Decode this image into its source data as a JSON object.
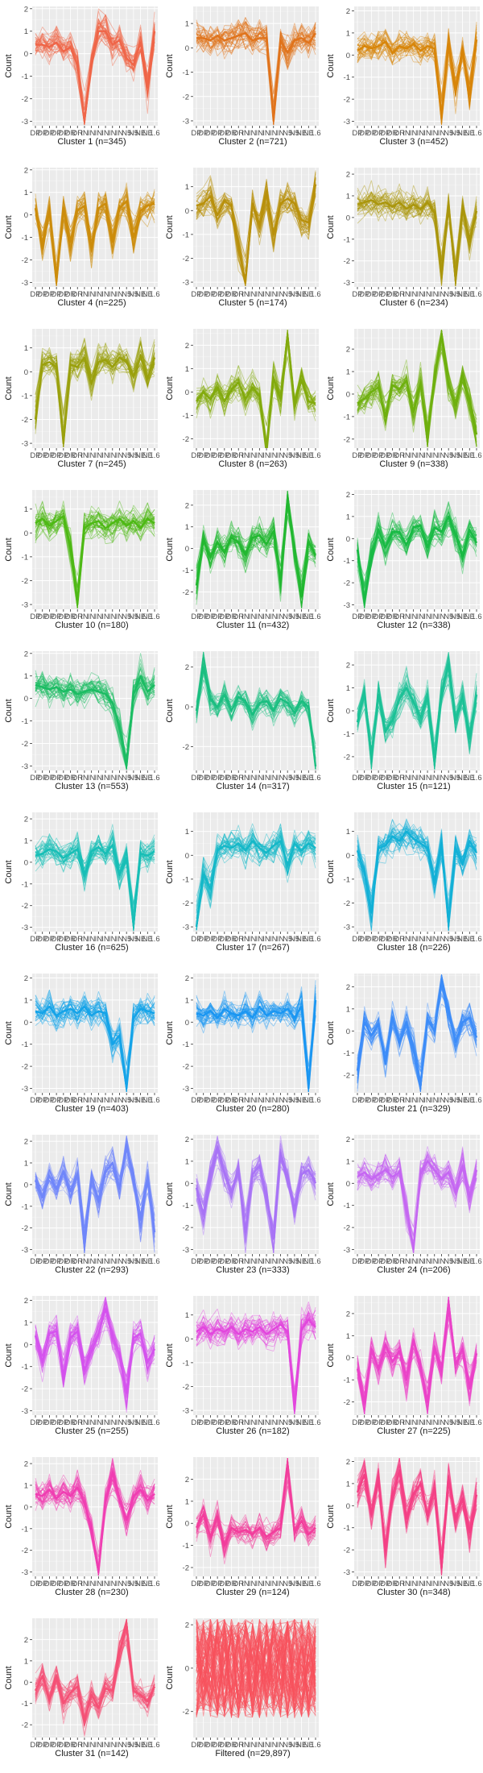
{
  "axis": {
    "ylabel": "Count",
    "xtick_labels": [
      "DP",
      "DP",
      "DP",
      "DP",
      "DP",
      "DR",
      "DR",
      "IN",
      "IN",
      "IN",
      "IN",
      "IN",
      "IN",
      "N5",
      "N5",
      "NE",
      "NE",
      "1.6"
    ]
  },
  "chart_data": [
    {
      "type": "line",
      "title": "Cluster 1 (n=345)",
      "color": "#EF6548",
      "ylim": [
        -3.2,
        2.1
      ],
      "yticks": [
        -3,
        -2,
        -1,
        0,
        1,
        2
      ],
      "profile": [
        0.4,
        0.4,
        0.3,
        0.5,
        0.1,
        0.3,
        -0.5,
        -3.0,
        -0.3,
        1.0,
        1.0,
        0.4,
        0.6,
        -0.2,
        -0.5,
        0.5,
        -1.5,
        1.0
      ]
    },
    {
      "type": "line",
      "title": "Cluster 2 (n=721)",
      "color": "#E0731B",
      "ylim": [
        -3.2,
        1.7
      ],
      "yticks": [
        -3,
        -2,
        -1,
        0,
        1
      ],
      "profile": [
        0.4,
        0.4,
        0.3,
        0.5,
        0.3,
        0.4,
        0.5,
        0.6,
        0.3,
        0.4,
        0.4,
        -3.0,
        0.3,
        -0.2,
        0.3,
        0.4,
        0.2,
        0.6
      ]
    },
    {
      "type": "line",
      "title": "Cluster 3 (n=452)",
      "color": "#D88509",
      "ylim": [
        -3.2,
        2.2
      ],
      "yticks": [
        -3,
        -2,
        -1,
        0,
        1,
        2
      ],
      "profile": [
        0.2,
        0.4,
        0.3,
        0.4,
        0.6,
        0.1,
        0.4,
        0.3,
        0.5,
        0.2,
        0.4,
        0.3,
        -2.8,
        0.5,
        -1.5,
        0.3,
        -1.8,
        0.7
      ]
    },
    {
      "type": "line",
      "title": "Cluster 4 (n=225)",
      "color": "#CC8C0B",
      "ylim": [
        -3.2,
        2.1
      ],
      "yticks": [
        -3,
        -2,
        -1,
        0,
        1,
        2
      ],
      "profile": [
        0.3,
        -1.5,
        0.2,
        -3.0,
        0.3,
        -1.2,
        0.2,
        0.4,
        -1.5,
        0.3,
        0.5,
        -1.2,
        0.3,
        0.6,
        -1.0,
        0.2,
        0.4,
        0.5
      ]
    },
    {
      "type": "line",
      "title": "Cluster 5 (n=174)",
      "color": "#B8900B",
      "ylim": [
        -3.2,
        1.8
      ],
      "yticks": [
        -3,
        -2,
        -1,
        0,
        1
      ],
      "profile": [
        0.2,
        0.3,
        0.6,
        -0.2,
        0.4,
        0.2,
        -1.5,
        -3.0,
        0.3,
        -0.6,
        0.8,
        -1.0,
        0.3,
        0.5,
        0.3,
        -0.4,
        -0.5,
        1.1
      ]
    },
    {
      "type": "line",
      "title": "Cluster 6 (n=234)",
      "color": "#AA960C",
      "ylim": [
        -3.2,
        2.3
      ],
      "yticks": [
        -3,
        -2,
        -1,
        0,
        1,
        2
      ],
      "profile": [
        0.6,
        0.7,
        0.8,
        0.6,
        0.7,
        0.5,
        0.7,
        0.4,
        0.6,
        0.4,
        0.7,
        0.2,
        -2.6,
        0.5,
        -2.8,
        0.4,
        -1.0,
        0.3
      ]
    },
    {
      "type": "line",
      "title": "Cluster 7 (n=245)",
      "color": "#9AA00C",
      "ylim": [
        -3.2,
        1.8
      ],
      "yticks": [
        -3,
        -2,
        -1,
        0,
        1
      ],
      "profile": [
        -2.0,
        0.3,
        0.4,
        0.2,
        -3.0,
        0.3,
        0.2,
        0.6,
        -0.5,
        0.4,
        0.5,
        0.2,
        0.6,
        0.4,
        -0.2,
        0.7,
        -0.3,
        0.6
      ]
    },
    {
      "type": "line",
      "title": "Cluster 8 (n=263)",
      "color": "#82AA0C",
      "ylim": [
        -2.4,
        2.7
      ],
      "yticks": [
        -2,
        -1,
        0,
        1,
        2
      ],
      "profile": [
        -0.4,
        0.0,
        -0.3,
        0.2,
        -0.4,
        0.1,
        0.4,
        -0.3,
        0.2,
        -0.2,
        -2.6,
        0.6,
        -0.3,
        2.4,
        -0.5,
        0.5,
        -0.4,
        -0.5
      ]
    },
    {
      "type": "line",
      "title": "Cluster 9 (n=338)",
      "color": "#6EB00E",
      "ylim": [
        -2.4,
        2.9
      ],
      "yticks": [
        -2,
        -1,
        0,
        1,
        2
      ],
      "profile": [
        -0.4,
        -0.2,
        0.1,
        0.3,
        -1.0,
        0.4,
        0.2,
        0.6,
        -0.8,
        0.5,
        -1.8,
        0.7,
        2.6,
        0.4,
        -0.5,
        0.8,
        -0.3,
        -1.8
      ]
    },
    {
      "type": "line",
      "title": "Cluster 10 (n=180)",
      "color": "#4DB914",
      "ylim": [
        -3.2,
        1.8
      ],
      "yticks": [
        -3,
        -2,
        -1,
        0,
        1
      ],
      "profile": [
        0.4,
        0.6,
        0.3,
        0.5,
        0.7,
        -0.6,
        -3.0,
        0.2,
        0.4,
        0.5,
        0.2,
        0.4,
        0.6,
        0.3,
        0.5,
        0.2,
        0.6,
        0.4
      ]
    },
    {
      "type": "line",
      "title": "Cluster 11 (n=432)",
      "color": "#22B830",
      "ylim": [
        -2.8,
        2.7
      ],
      "yticks": [
        -2,
        -1,
        0,
        1,
        2
      ],
      "profile": [
        -1.7,
        0.4,
        -0.4,
        0.3,
        -0.2,
        0.5,
        0.3,
        -0.3,
        0.5,
        0.6,
        0.2,
        0.8,
        -1.5,
        2.2,
        -0.2,
        -2.2,
        0.3,
        -0.3
      ]
    },
    {
      "type": "line",
      "title": "Cluster 12 (n=338)",
      "color": "#18BA44",
      "ylim": [
        -3.2,
        2.2
      ],
      "yticks": [
        -3,
        -2,
        -1,
        0,
        1,
        2
      ],
      "profile": [
        -0.5,
        -2.8,
        -0.8,
        0.4,
        -0.4,
        0.3,
        0.3,
        -0.3,
        0.5,
        0.6,
        -0.4,
        0.5,
        0.3,
        1.0,
        0.2,
        -0.8,
        0.4,
        -0.2
      ]
    },
    {
      "type": "line",
      "title": "Cluster 13 (n=553)",
      "color": "#1ABC62",
      "ylim": [
        -3.2,
        2.1
      ],
      "yticks": [
        -3,
        -2,
        -1,
        0,
        1,
        2
      ],
      "profile": [
        0.6,
        0.5,
        0.4,
        0.5,
        0.3,
        0.4,
        0.2,
        0.3,
        0.4,
        0.3,
        0.2,
        -0.2,
        -1.3,
        -3.0,
        0.2,
        1.0,
        0.3,
        0.6
      ]
    },
    {
      "type": "line",
      "title": "Cluster 14 (n=317)",
      "color": "#1ABE80",
      "ylim": [
        -3.2,
        2.8
      ],
      "yticks": [
        -2,
        0,
        2
      ],
      "profile": [
        -0.2,
        2.0,
        0.4,
        0.0,
        0.6,
        -0.2,
        0.5,
        0.3,
        -0.4,
        0.2,
        0.3,
        -0.2,
        0.4,
        0.2,
        -0.3,
        0.3,
        0.0,
        -3.0
      ]
    },
    {
      "type": "line",
      "title": "Cluster 15 (n=121)",
      "color": "#1BC196",
      "ylim": [
        -2.6,
        2.6
      ],
      "yticks": [
        -2,
        -1,
        0,
        1,
        2
      ],
      "profile": [
        -0.5,
        0.8,
        -2.0,
        0.7,
        -0.9,
        -0.4,
        0.5,
        1.0,
        0.4,
        -0.3,
        0.6,
        -2.2,
        0.8,
        2.0,
        -0.4,
        0.6,
        -1.2,
        0.7
      ]
    },
    {
      "type": "line",
      "title": "Cluster 16 (n=625)",
      "color": "#17BEB6",
      "ylim": [
        -3.2,
        2.3
      ],
      "yticks": [
        -3,
        -2,
        -1,
        0,
        1,
        2
      ],
      "profile": [
        0.3,
        0.4,
        0.6,
        0.5,
        0.2,
        0.4,
        0.6,
        -0.6,
        0.5,
        0.7,
        0.4,
        0.8,
        -0.6,
        0.2,
        -2.9,
        0.4,
        0.3,
        0.5
      ]
    },
    {
      "type": "line",
      "title": "Cluster 17 (n=267)",
      "color": "#14B8C8",
      "ylim": [
        -3.2,
        1.8
      ],
      "yticks": [
        -3,
        -2,
        -1,
        0,
        1
      ],
      "profile": [
        -3.0,
        -0.8,
        -1.4,
        0.2,
        0.4,
        0.3,
        0.5,
        0.2,
        0.6,
        0.3,
        0.1,
        0.4,
        0.6,
        -0.4,
        0.5,
        0.2,
        0.5,
        0.3
      ]
    },
    {
      "type": "line",
      "title": "Cluster 18 (n=226)",
      "color": "#11B0D6",
      "ylim": [
        -3.2,
        1.8
      ],
      "yticks": [
        -3,
        -2,
        -1,
        0,
        1
      ],
      "profile": [
        0.2,
        -0.7,
        -2.4,
        0.3,
        0.4,
        0.8,
        0.6,
        1.0,
        0.7,
        0.5,
        0.3,
        -1.2,
        0.4,
        -2.8,
        0.3,
        -0.4,
        0.6,
        0.1
      ]
    },
    {
      "type": "line",
      "title": "Cluster 19 (n=403)",
      "color": "#14A3E8",
      "ylim": [
        -3.2,
        2.2
      ],
      "yticks": [
        -3,
        -2,
        -1,
        0,
        1,
        2
      ],
      "profile": [
        0.5,
        0.4,
        0.7,
        0.3,
        0.5,
        0.6,
        0.4,
        0.7,
        0.3,
        0.5,
        0.4,
        -1.0,
        -0.6,
        -3.0,
        0.2,
        0.6,
        0.5,
        0.4
      ]
    },
    {
      "type": "line",
      "title": "Cluster 20 (n=280)",
      "color": "#1A96F2",
      "ylim": [
        -3.2,
        2.2
      ],
      "yticks": [
        -3,
        -2,
        -1,
        0,
        1,
        2
      ],
      "profile": [
        0.4,
        0.3,
        0.5,
        0.2,
        0.6,
        0.4,
        0.3,
        0.5,
        0.2,
        0.7,
        0.3,
        0.5,
        0.4,
        0.6,
        0.2,
        0.7,
        -3.0,
        1.0
      ]
    },
    {
      "type": "line",
      "title": "Cluster 21 (n=329)",
      "color": "#3C8CF8",
      "ylim": [
        -2.8,
        2.6
      ],
      "yticks": [
        -2,
        -1,
        0,
        1,
        2
      ],
      "profile": [
        -1.8,
        0.4,
        -0.2,
        0.3,
        -1.5,
        0.6,
        -0.5,
        0.4,
        -0.8,
        -2.4,
        0.5,
        0.0,
        2.2,
        0.8,
        -0.5,
        0.4,
        0.6,
        -0.3
      ]
    },
    {
      "type": "line",
      "title": "Cluster 22 (n=293)",
      "color": "#6F86FA",
      "ylim": [
        -3.2,
        2.3
      ],
      "yticks": [
        -3,
        -2,
        -1,
        0,
        1,
        2
      ],
      "profile": [
        0.2,
        -0.6,
        0.4,
        -0.2,
        0.6,
        -0.3,
        0.5,
        -2.6,
        0.3,
        -0.8,
        0.6,
        1.0,
        -0.2,
        1.8,
        0.3,
        -1.6,
        0.4,
        -2.2
      ]
    },
    {
      "type": "line",
      "title": "Cluster 23 (n=333)",
      "color": "#A873F6",
      "ylim": [
        -3.2,
        2.2
      ],
      "yticks": [
        -3,
        -2,
        -1,
        0,
        1,
        2
      ],
      "profile": [
        -0.2,
        -1.4,
        0.4,
        1.6,
        0.5,
        -0.4,
        0.6,
        -2.2,
        0.4,
        0.8,
        -0.6,
        -2.5,
        1.4,
        0.3,
        -1.2,
        0.4,
        0.6,
        0.0
      ]
    },
    {
      "type": "line",
      "title": "Cluster 24 (n=206)",
      "color": "#C566F2",
      "ylim": [
        -3.2,
        2.2
      ],
      "yticks": [
        -3,
        -2,
        -1,
        0,
        1,
        2
      ],
      "profile": [
        0.3,
        0.5,
        0.2,
        0.4,
        0.6,
        0.3,
        0.5,
        -1.2,
        -3.0,
        0.4,
        1.0,
        0.6,
        0.2,
        0.5,
        -0.4,
        0.8,
        -0.6,
        0.6
      ]
    },
    {
      "type": "line",
      "title": "Cluster 25 (n=255)",
      "color": "#D452EE",
      "ylim": [
        -3.2,
        2.2
      ],
      "yticks": [
        -3,
        -2,
        -1,
        0,
        1,
        2
      ],
      "profile": [
        0.4,
        -0.8,
        0.5,
        0.6,
        -1.4,
        0.3,
        0.6,
        -1.2,
        -0.3,
        0.5,
        1.6,
        0.4,
        -0.5,
        -2.2,
        0.3,
        0.5,
        -0.8,
        -0.2
      ]
    },
    {
      "type": "line",
      "title": "Cluster 26 (n=182)",
      "color": "#E246DD",
      "ylim": [
        -3.2,
        1.8
      ],
      "yticks": [
        -3,
        -2,
        -1,
        0,
        1
      ],
      "profile": [
        0.3,
        0.5,
        0.2,
        0.4,
        0.3,
        0.5,
        0.2,
        0.4,
        0.3,
        0.5,
        0.2,
        0.4,
        0.6,
        0.3,
        -3.0,
        0.4,
        0.8,
        0.5
      ]
    },
    {
      "type": "line",
      "title": "Cluster 27 (n=225)",
      "color": "#EA42C8",
      "ylim": [
        -2.6,
        2.8
      ],
      "yticks": [
        -2,
        -1,
        0,
        1,
        2
      ],
      "profile": [
        -0.5,
        -2.0,
        0.4,
        -0.5,
        0.6,
        -0.2,
        0.3,
        -1.0,
        0.8,
        -0.4,
        -2.0,
        0.5,
        -0.6,
        2.5,
        -0.3,
        0.4,
        -1.4,
        0.2
      ]
    },
    {
      "type": "line",
      "title": "Cluster 28 (n=230)",
      "color": "#F03DB2",
      "ylim": [
        -3.2,
        2.3
      ],
      "yticks": [
        -3,
        -2,
        -1,
        0,
        1,
        2
      ],
      "profile": [
        0.6,
        0.5,
        0.8,
        0.4,
        0.7,
        0.5,
        0.9,
        0.2,
        -1.0,
        -3.0,
        0.3,
        1.6,
        0.4,
        -0.6,
        0.5,
        0.8,
        0.3,
        0.6
      ]
    },
    {
      "type": "line",
      "title": "Cluster 29 (n=124)",
      "color": "#F23D9C",
      "ylim": [
        -2.4,
        3.0
      ],
      "yticks": [
        -2,
        -1,
        0,
        1,
        2
      ],
      "profile": [
        -0.2,
        0.4,
        -0.6,
        0.3,
        -1.0,
        -0.2,
        -0.4,
        -0.3,
        -0.5,
        -0.2,
        -0.6,
        -0.4,
        -0.2,
        2.7,
        -0.4,
        0.1,
        -0.5,
        -0.2
      ]
    },
    {
      "type": "line",
      "title": "Cluster 30 (n=348)",
      "color": "#F44085",
      "ylim": [
        -3.2,
        2.2
      ],
      "yticks": [
        -3,
        -2,
        -1,
        0,
        1,
        2
      ],
      "profile": [
        0.6,
        1.4,
        -0.4,
        1.2,
        -2.0,
        0.4,
        1.6,
        -0.6,
        0.5,
        1.0,
        -0.4,
        0.8,
        -2.8,
        1.2,
        -0.6,
        0.3,
        -1.2,
        0.5
      ]
    },
    {
      "type": "line",
      "title": "Cluster 31 (n=142)",
      "color": "#F55075",
      "ylim": [
        -2.6,
        3.0
      ],
      "yticks": [
        -2,
        -1,
        0,
        1,
        2
      ],
      "profile": [
        -0.4,
        0.3,
        -0.8,
        0.2,
        -1.0,
        -0.5,
        -0.2,
        -1.8,
        -0.6,
        -1.2,
        -0.3,
        -0.4,
        1.4,
        2.7,
        -0.4,
        -0.6,
        -0.9,
        -0.2
      ]
    },
    {
      "type": "line",
      "title": "Filtered (n=29,897)",
      "color": "#F8525C",
      "ylim": [
        -3.2,
        2.3
      ],
      "yticks": [
        -2,
        0,
        2
      ],
      "profile": [
        0,
        0,
        0,
        0,
        0,
        0,
        0,
        0,
        0,
        0,
        0,
        0,
        0,
        0,
        0,
        0,
        0,
        0
      ]
    }
  ]
}
